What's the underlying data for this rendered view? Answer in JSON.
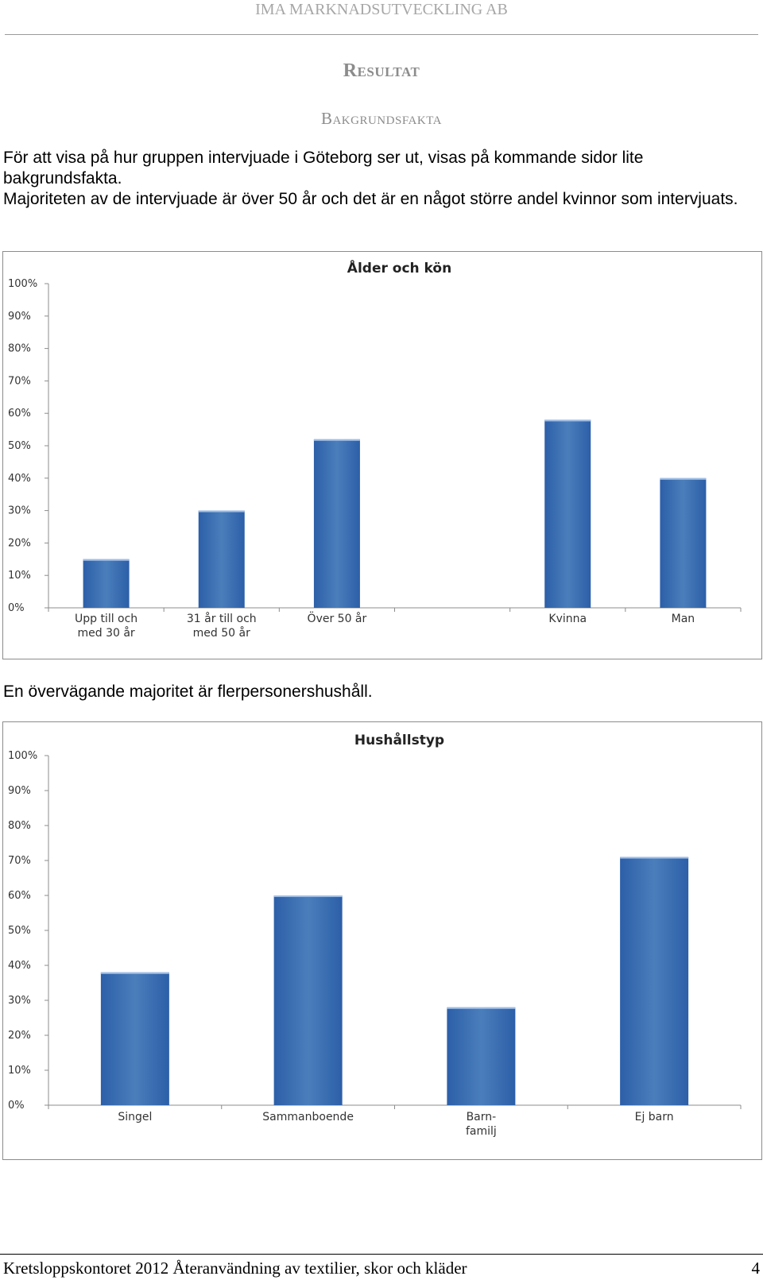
{
  "header": {
    "company": "IMA MARKNADSUTVECKLING AB"
  },
  "section": {
    "title": "Resultat",
    "subtitle": "Bakgrundsfakta"
  },
  "intro": {
    "p1": "För att visa på hur gruppen intervjuade i Göteborg ser ut, visas på kommande sidor lite bakgrundsfakta.",
    "p2": "Majoriteten av de intervjuade är över 50 år och det är en något större andel kvinnor som intervjuats."
  },
  "between_text": "En övervägande majoritet är flerpersonershushåll.",
  "footer": {
    "text": "Kretsloppskontoret 2012 Återanvändning av textilier, skor och kläder",
    "page": "4"
  },
  "colors": {
    "bar": "#4a7ebb",
    "bar_dark": "#2c5fa8",
    "grid": "#d9d9d9",
    "axis": "#8c8c8c"
  },
  "chart_data": [
    {
      "type": "bar",
      "title": "Ålder och kön",
      "categories": [
        [
          "Upp till och",
          "med 30 år"
        ],
        [
          "31 år till och",
          "med 50 år"
        ],
        [
          "Över 50 år"
        ],
        [
          ""
        ],
        [
          "Kvinna"
        ],
        [
          "Man"
        ]
      ],
      "values": [
        15,
        30,
        52,
        null,
        58,
        40
      ],
      "ylim": [
        0,
        100
      ],
      "yticks": [
        "0%",
        "10%",
        "20%",
        "30%",
        "40%",
        "50%",
        "60%",
        "70%",
        "80%",
        "90%",
        "100%"
      ],
      "grid": false
    },
    {
      "type": "bar",
      "title": "Hushållstyp",
      "categories": [
        [
          "Singel"
        ],
        [
          "Sammanboende"
        ],
        [
          "Barn-",
          "familj"
        ],
        [
          "Ej barn"
        ]
      ],
      "values": [
        38,
        60,
        28,
        71
      ],
      "ylim": [
        0,
        100
      ],
      "yticks": [
        "0%",
        "10%",
        "20%",
        "30%",
        "40%",
        "50%",
        "60%",
        "70%",
        "80%",
        "90%",
        "100%"
      ],
      "grid": false
    }
  ]
}
